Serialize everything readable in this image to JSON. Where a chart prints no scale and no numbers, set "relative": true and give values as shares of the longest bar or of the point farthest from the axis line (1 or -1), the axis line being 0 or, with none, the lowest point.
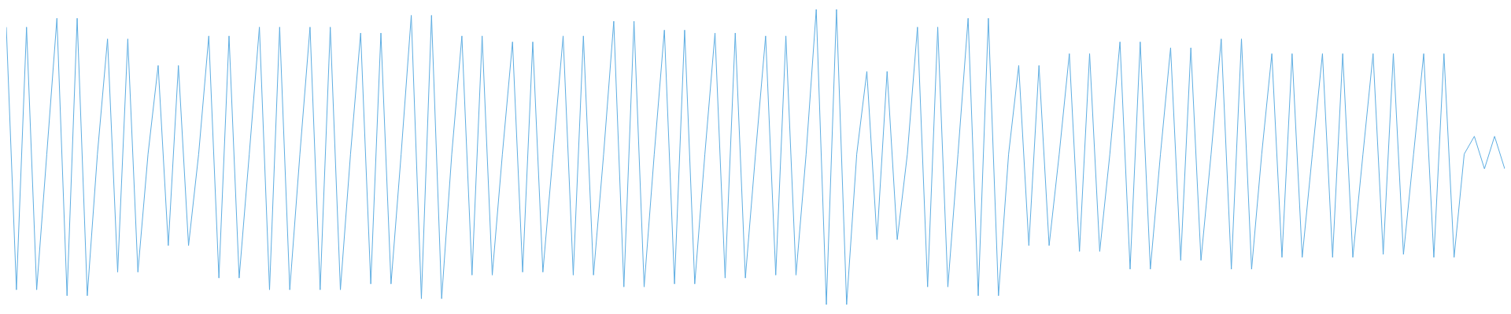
{
  "chart_data": {
    "type": "line",
    "relative": true,
    "grid": false,
    "legend": false,
    "marker": "none",
    "line_style": "solid",
    "tick_labels": false,
    "categories": [
      null,
      null,
      null,
      null,
      null,
      null,
      null,
      null,
      null,
      null,
      null,
      null,
      null,
      null,
      null,
      null,
      null,
      null,
      null,
      null,
      null,
      null,
      null,
      null,
      null,
      null,
      null,
      null,
      null,
      null,
      null,
      null,
      null,
      null,
      null,
      null,
      null,
      null,
      null,
      null,
      null,
      null,
      null,
      null,
      null,
      null,
      null,
      null,
      null,
      null,
      null,
      null,
      null,
      null,
      null,
      null,
      null,
      null,
      null,
      null,
      null,
      null,
      null,
      null,
      null,
      null,
      null,
      null,
      null,
      null,
      null,
      null,
      null,
      null,
      null,
      null,
      null,
      null,
      null,
      null,
      null,
      null,
      null,
      null,
      null,
      null,
      null,
      null,
      null,
      null,
      null,
      null,
      null,
      null,
      null,
      null,
      null,
      null,
      null,
      null,
      null,
      null,
      null,
      null,
      null,
      null,
      null,
      null,
      null,
      null,
      null,
      null,
      null,
      null,
      null,
      null,
      null,
      null,
      null,
      null,
      null,
      null,
      null,
      null,
      null,
      null,
      null,
      null,
      null,
      null,
      null,
      null,
      null,
      null,
      null,
      null,
      null,
      null,
      null,
      null,
      null,
      null,
      null,
      null,
      null,
      null,
      null,
      null,
      null
    ],
    "series": [
      {
        "color": "#5dade2",
        "values": [
          0.94,
          0.05,
          0.94,
          0.05,
          0.51,
          0.97,
          0.03,
          0.97,
          0.03,
          0.51,
          0.9,
          0.11,
          0.9,
          0.11,
          0.51,
          0.81,
          0.2,
          0.81,
          0.2,
          0.51,
          0.91,
          0.09,
          0.91,
          0.09,
          0.51,
          0.94,
          0.05,
          0.94,
          0.05,
          0.51,
          0.94,
          0.05,
          0.94,
          0.05,
          0.51,
          0.92,
          0.07,
          0.92,
          0.07,
          0.51,
          0.98,
          0.02,
          0.98,
          0.02,
          0.51,
          0.91,
          0.1,
          0.91,
          0.1,
          0.51,
          0.89,
          0.11,
          0.89,
          0.11,
          0.51,
          0.91,
          0.1,
          0.91,
          0.1,
          0.51,
          0.96,
          0.06,
          0.96,
          0.06,
          0.51,
          0.93,
          0.07,
          0.93,
          0.07,
          0.51,
          0.92,
          0.09,
          0.92,
          0.09,
          0.51,
          0.91,
          0.1,
          0.91,
          0.1,
          0.51,
          1,
          0,
          1,
          0,
          0.51,
          0.79,
          0.22,
          0.79,
          0.22,
          0.51,
          0.94,
          0.06,
          0.94,
          0.06,
          0.51,
          0.97,
          0.03,
          0.97,
          0.03,
          0.51,
          0.81,
          0.2,
          0.81,
          0.2,
          0.51,
          0.85,
          0.18,
          0.85,
          0.18,
          0.51,
          0.89,
          0.12,
          0.89,
          0.12,
          0.51,
          0.87,
          0.15,
          0.87,
          0.15,
          0.51,
          0.9,
          0.12,
          0.9,
          0.12,
          0.51,
          0.85,
          0.16,
          0.85,
          0.16,
          0.51,
          0.85,
          0.16,
          0.85,
          0.16,
          0.51,
          0.85,
          0.17,
          0.85,
          0.17,
          0.51,
          0.85,
          0.16,
          0.85,
          0.16,
          0.51,
          0.57,
          0.46,
          0.57,
          0.46
        ]
      }
    ]
  }
}
